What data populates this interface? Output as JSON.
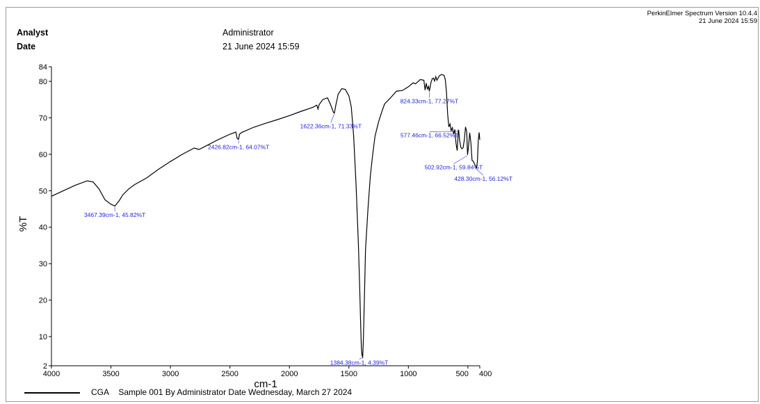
{
  "header": {
    "software": "PerkinElmer Spectrum Version 10.4.4",
    "software_date": "21 June 2024 15:59",
    "analyst_label": "Analyst",
    "analyst_value": "Administrator",
    "date_label": "Date",
    "date_value": "21 June 2024 15:59"
  },
  "chart_data": {
    "type": "line",
    "xlabel": "cm-1",
    "ylabel": "%T",
    "xlim": [
      4000,
      400
    ],
    "ylim": [
      2,
      84
    ],
    "x_ticks": [
      4000,
      3500,
      3000,
      2500,
      2000,
      1500,
      1000,
      500,
      400
    ],
    "x_tick_labels": [
      "4000",
      "3500",
      "3000",
      "2500",
      "2000",
      "1500",
      "1000",
      "500",
      "400"
    ],
    "y_ticks": [
      2,
      10,
      20,
      30,
      40,
      50,
      60,
      70,
      80,
      84
    ],
    "y_tick_labels": [
      "2",
      "10",
      "20",
      "30",
      "40",
      "50",
      "60",
      "70",
      "80",
      "84"
    ],
    "grid": false,
    "series": [
      {
        "name": "CGA",
        "color": "#000000",
        "x": [
          4000,
          3900,
          3800,
          3700,
          3650,
          3600,
          3550,
          3500,
          3467,
          3430,
          3400,
          3350,
          3300,
          3200,
          3100,
          3000,
          2900,
          2800,
          2760,
          2700,
          2600,
          2500,
          2450,
          2440,
          2430,
          2427,
          2420,
          2400,
          2300,
          2200,
          2100,
          2000,
          1900,
          1800,
          1770,
          1760,
          1750,
          1720,
          1680,
          1650,
          1630,
          1622,
          1610,
          1590,
          1560,
          1530,
          1500,
          1480,
          1460,
          1440,
          1420,
          1410,
          1400,
          1395,
          1390,
          1386,
          1384,
          1382,
          1378,
          1370,
          1360,
          1340,
          1320,
          1300,
          1280,
          1250,
          1220,
          1200,
          1150,
          1100,
          1050,
          1000,
          960,
          940,
          900,
          870,
          860,
          850,
          840,
          830,
          824,
          818,
          810,
          800,
          790,
          780,
          770,
          760,
          740,
          720,
          700,
          690,
          680,
          670,
          660,
          650,
          640,
          630,
          620,
          610,
          600,
          590,
          580,
          577,
          570,
          560,
          550,
          540,
          530,
          520,
          510,
          503,
          495,
          485,
          475,
          465,
          455,
          445,
          435,
          428,
          420,
          412,
          405,
          400
        ],
        "y": [
          48.5,
          50,
          51.5,
          52.7,
          52.4,
          50.5,
          47.5,
          46.3,
          45.8,
          47.3,
          48.9,
          50.5,
          51.7,
          53.5,
          55.9,
          58,
          60,
          61.7,
          61.3,
          62.3,
          64,
          65.5,
          66.1,
          64.5,
          64.1,
          64.2,
          65.5,
          66,
          67.4,
          68.5,
          69.5,
          70.6,
          71.8,
          72.9,
          73.5,
          72.4,
          73.6,
          75,
          75.5,
          73.3,
          71.5,
          71.3,
          73.5,
          76.5,
          78,
          77.8,
          76,
          73,
          65,
          52,
          35,
          24,
          12,
          7,
          5,
          4.5,
          4.39,
          6,
          10,
          20,
          34,
          45,
          54,
          60,
          65,
          69,
          72,
          73.8,
          75.5,
          77.3,
          77.5,
          78.5,
          79.6,
          79.3,
          80.5,
          80.3,
          77.6,
          79.5,
          77.9,
          78.6,
          77.27,
          78.3,
          79.7,
          80.7,
          80.9,
          80.1,
          81.3,
          80.3,
          81.5,
          81.9,
          81.6,
          80.5,
          77,
          71,
          67.5,
          68.3,
          66.5,
          67.3,
          65.5,
          66.8,
          63,
          61,
          66.6,
          66.52,
          64,
          62,
          61.5,
          61.8,
          64,
          67.5,
          66.2,
          59.84,
          62,
          65.9,
          63.2,
          58.3,
          58.1,
          57.4,
          56.8,
          56.12,
          58,
          64,
          66,
          64
        ]
      }
    ],
    "annotations": [
      {
        "text": "3467.39cm-1, 45.82%T",
        "x": 3467.39,
        "y": 45.82
      },
      {
        "text": "2426.82cm-1, 64.07%T",
        "x": 2426.82,
        "y": 64.07
      },
      {
        "text": "1622.36cm-1, 71.33%T",
        "x": 1622.36,
        "y": 71.33
      },
      {
        "text": "1384.38cm-1, 4.39%T",
        "x": 1384.38,
        "y": 4.39
      },
      {
        "text": "824.33cm-1, 77.27%T",
        "x": 824.33,
        "y": 77.27
      },
      {
        "text": "577.46cm-1, 66.52%T",
        "x": 577.46,
        "y": 66.52
      },
      {
        "text": "502.92cm-1, 59.84%T",
        "x": 502.92,
        "y": 59.84
      },
      {
        "text": "428.30cm-1, 56.12%T",
        "x": 428.3,
        "y": 56.12
      }
    ],
    "annotation_color": "#1f1fe0"
  },
  "legend": {
    "sample": "CGA",
    "description": "Sample 001 By Administrator Date Wednesday, March 27 2024"
  }
}
